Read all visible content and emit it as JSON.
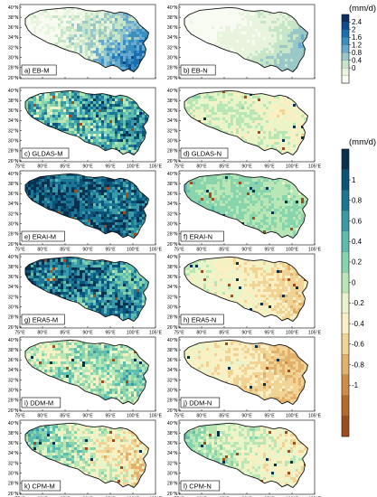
{
  "figure": {
    "lat_labels": [
      "40°N",
      "38°N",
      "36°N",
      "34°N",
      "32°N",
      "30°N",
      "28°N",
      "26°N"
    ],
    "lon_labels": [
      "75°E",
      "80°E",
      "85°E",
      "90°E",
      "95°E",
      "100°E",
      "105°E"
    ],
    "panels": [
      {
        "id": "a",
        "label": "a) EB-M",
        "field": "mean",
        "base": 0.6,
        "west_east_gradient": 1.4,
        "noise": 0.35,
        "palette": "seq",
        "show_lon": false
      },
      {
        "id": "b",
        "label": "b) EB-N",
        "field": "mean",
        "base": 0.2,
        "west_east_gradient": 0.9,
        "noise": 0.15,
        "palette": "seq",
        "show_lon": false
      },
      {
        "id": "c",
        "label": "c) GLDAS-M",
        "field": "diff",
        "base": 0.45,
        "west_east_gradient": 0.2,
        "noise": 0.45,
        "palette": "div",
        "show_lon": true
      },
      {
        "id": "d",
        "label": "d) GLDAS-N",
        "field": "diff",
        "base": -0.05,
        "west_east_gradient": -0.15,
        "noise": 0.18,
        "palette": "div",
        "show_lon": true
      },
      {
        "id": "e",
        "label": "e) ERAI-M",
        "field": "diff",
        "base": 0.9,
        "west_east_gradient": -0.2,
        "noise": 0.35,
        "palette": "div",
        "show_lon": true
      },
      {
        "id": "f",
        "label": "f) ERAI-N",
        "field": "diff",
        "base": 0.2,
        "west_east_gradient": -0.1,
        "noise": 0.12,
        "palette": "div",
        "show_lon": true
      },
      {
        "id": "g",
        "label": "g) ERA5-M",
        "field": "diff",
        "base": 0.75,
        "west_east_gradient": -0.25,
        "noise": 0.4,
        "palette": "div",
        "show_lon": true
      },
      {
        "id": "h",
        "label": "h) ERA5-N",
        "field": "diff",
        "base": -0.2,
        "west_east_gradient": -0.3,
        "noise": 0.15,
        "palette": "div",
        "show_lon": true
      },
      {
        "id": "i",
        "label": "i) DDM-M",
        "field": "diff",
        "base": 0.1,
        "west_east_gradient": 0.15,
        "noise": 0.3,
        "palette": "div",
        "show_lon": true
      },
      {
        "id": "j",
        "label": "j) DDM-N",
        "field": "diff",
        "base": -0.3,
        "west_east_gradient": -0.3,
        "noise": 0.15,
        "palette": "div",
        "show_lon": true
      },
      {
        "id": "k",
        "label": "k) CPM-M",
        "field": "diff",
        "base": 0.05,
        "west_east_gradient": -0.55,
        "noise": 0.3,
        "palette": "div",
        "show_lon": true
      },
      {
        "id": "l",
        "label": "l) CPM-N",
        "field": "diff",
        "base": 0.0,
        "west_east_gradient": -0.35,
        "noise": 0.2,
        "palette": "div",
        "show_lon": true
      }
    ]
  },
  "colorbar_top": {
    "unit": "(mm/d)",
    "ticks": [
      "2.4",
      "2",
      "1.6",
      "1.2",
      "0.8",
      "0.4",
      "0"
    ],
    "colors": [
      "#0a2f5e",
      "#0f4c8c",
      "#1c6fae",
      "#3a8fc1",
      "#67a9cf",
      "#9ac8c9",
      "#c7e6c8",
      "#e9f4de",
      "#f7fbf2"
    ]
  },
  "colorbar_bottom": {
    "unit": "(mm/d)",
    "ticks": [
      "1",
      "0.8",
      "0.6",
      "0.4",
      "0.2",
      "0",
      "-0.2",
      "-0.4",
      "-0.6",
      "-0.8",
      "-1"
    ],
    "colors": [
      "#08304f",
      "#0b5479",
      "#1c7796",
      "#3a9aa8",
      "#5ebdae",
      "#87d4ad",
      "#b8e6b4",
      "#e7f5c8",
      "#fbf0c4",
      "#f1d395",
      "#e2b26c",
      "#cf8c47",
      "#b66a2c",
      "#9c4f1c"
    ]
  }
}
